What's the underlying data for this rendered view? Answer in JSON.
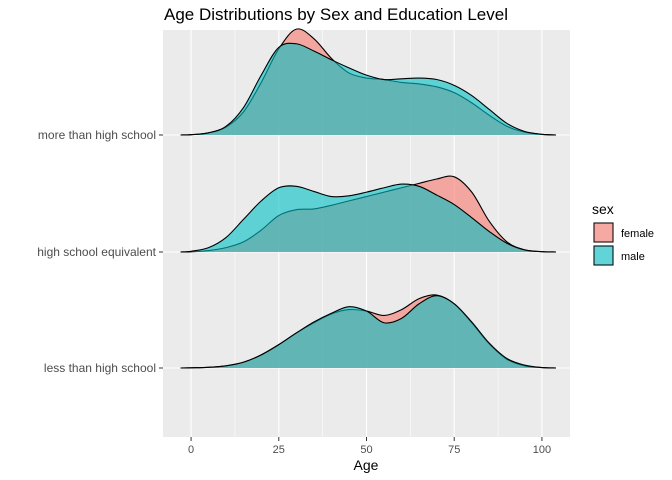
{
  "chart_data": {
    "type": "ridgeline",
    "title": "Age Distributions by Sex and Education Level",
    "xlabel": "Age",
    "ylabel": "",
    "xlim": [
      -8,
      108
    ],
    "x_ticks": [
      0,
      25,
      50,
      75,
      100
    ],
    "x_tick_labels": [
      "0",
      "25",
      "50",
      "75",
      "100"
    ],
    "categories": [
      "less than high school",
      "high school equivalent",
      "more than high school"
    ],
    "x": [
      -3,
      0,
      5,
      10,
      15,
      20,
      25,
      30,
      35,
      40,
      45,
      50,
      55,
      60,
      65,
      70,
      75,
      80,
      85,
      90,
      95,
      100,
      104
    ],
    "ridges": [
      {
        "category": "less than high school",
        "series": [
          {
            "name": "female",
            "values": [
              0,
              0.003,
              0.01,
              0.03,
              0.08,
              0.18,
              0.32,
              0.48,
              0.62,
              0.74,
              0.8,
              0.78,
              0.72,
              0.8,
              0.95,
              1.0,
              0.88,
              0.62,
              0.33,
              0.12,
              0.03,
              0.006,
              0
            ]
          },
          {
            "name": "male",
            "values": [
              0,
              0.003,
              0.01,
              0.03,
              0.08,
              0.18,
              0.32,
              0.48,
              0.63,
              0.75,
              0.84,
              0.78,
              0.62,
              0.68,
              0.88,
              0.99,
              0.88,
              0.63,
              0.34,
              0.13,
              0.04,
              0.006,
              0
            ]
          }
        ]
      },
      {
        "category": "high school equivalent",
        "series": [
          {
            "name": "female",
            "values": [
              0,
              0.003,
              0.02,
              0.06,
              0.14,
              0.3,
              0.5,
              0.58,
              0.59,
              0.64,
              0.7,
              0.76,
              0.82,
              0.88,
              0.94,
              1.0,
              1.03,
              0.82,
              0.42,
              0.14,
              0.03,
              0.004,
              0
            ]
          },
          {
            "name": "male",
            "values": [
              0,
              0.01,
              0.06,
              0.2,
              0.45,
              0.7,
              0.88,
              0.9,
              0.83,
              0.76,
              0.77,
              0.82,
              0.88,
              0.93,
              0.9,
              0.78,
              0.65,
              0.47,
              0.28,
              0.12,
              0.03,
              0.005,
              0
            ]
          }
        ]
      },
      {
        "category": "more than high school",
        "series": [
          {
            "name": "female",
            "values": [
              0,
              0.004,
              0.03,
              0.11,
              0.32,
              0.72,
              1.18,
              1.45,
              1.32,
              1.05,
              0.85,
              0.78,
              0.76,
              0.72,
              0.7,
              0.66,
              0.58,
              0.44,
              0.27,
              0.12,
              0.04,
              0.008,
              0
            ]
          },
          {
            "name": "male",
            "values": [
              0,
              0.004,
              0.03,
              0.12,
              0.38,
              0.82,
              1.2,
              1.25,
              1.15,
              1.03,
              0.92,
              0.82,
              0.76,
              0.77,
              0.78,
              0.76,
              0.68,
              0.54,
              0.35,
              0.16,
              0.05,
              0.01,
              0
            ]
          }
        ]
      }
    ],
    "legend": {
      "title": "sex",
      "placement": "right",
      "entries": [
        {
          "label": "female",
          "color": "#F8766D"
        },
        {
          "label": "male",
          "color": "#00BFC4"
        }
      ]
    },
    "colors": {
      "female": "#F8766D",
      "male": "#00BFC4",
      "panel": "#EBEBEB",
      "gridline": "#FFFFFF"
    },
    "fill_alpha": 0.6,
    "grid": true
  }
}
